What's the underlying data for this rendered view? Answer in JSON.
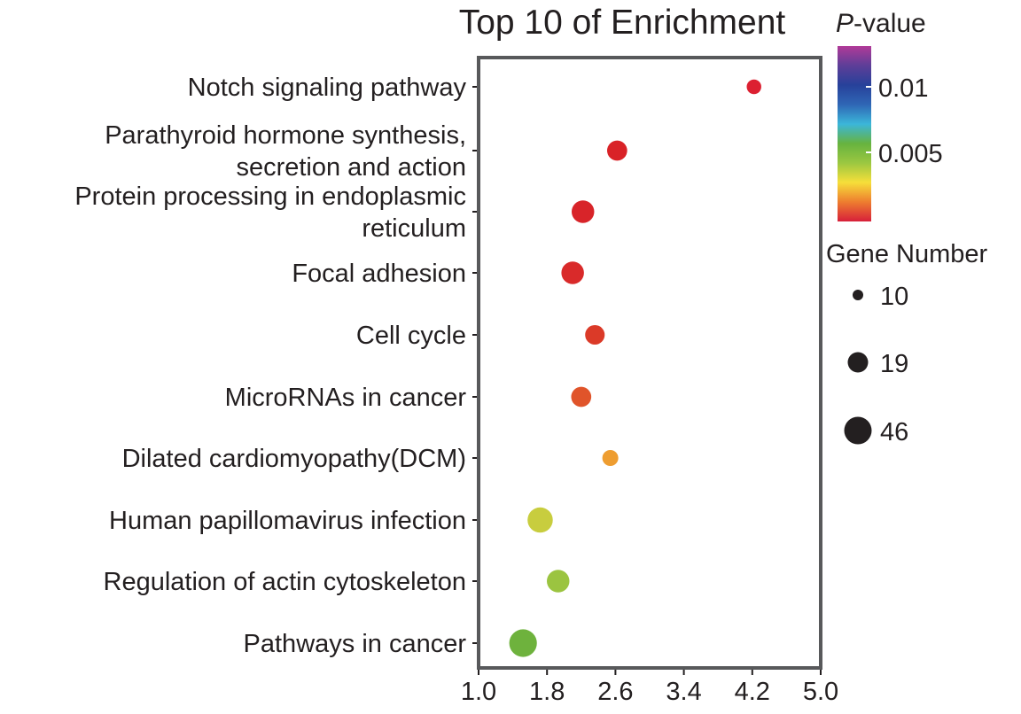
{
  "chart_data": {
    "type": "scatter",
    "title": "Top 10 of Enrichment",
    "xlabel": "",
    "ylabel": "",
    "xlim": [
      1.0,
      5.0
    ],
    "x_ticks": [
      "1.0",
      "1.8",
      "2.6",
      "3.4",
      "4.2",
      "5.0"
    ],
    "points": [
      {
        "label": "Notch signaling pathway",
        "x": 4.22,
        "p_value": 0.0002,
        "gene_number": 10,
        "color": "#dc2031"
      },
      {
        "label": "Parathyroid hormone synthesis,\nsecretion and action",
        "x": 2.62,
        "p_value": 0.0003,
        "gene_number": 19,
        "color": "#d92227"
      },
      {
        "label": "Protein processing in endoplasmic\nreticulum",
        "x": 2.22,
        "p_value": 0.0003,
        "gene_number": 24,
        "color": "#d82429"
      },
      {
        "label": "Focal adhesion",
        "x": 2.1,
        "p_value": 0.0003,
        "gene_number": 24,
        "color": "#d92a2a"
      },
      {
        "label": "Cell cycle",
        "x": 2.36,
        "p_value": 0.0005,
        "gene_number": 18,
        "color": "#db3a28"
      },
      {
        "label": "MicroRNAs in cancer",
        "x": 2.2,
        "p_value": 0.0007,
        "gene_number": 19,
        "color": "#e0542a"
      },
      {
        "label": "Dilated cardiomyopathy(DCM)",
        "x": 2.54,
        "p_value": 0.0015,
        "gene_number": 12,
        "color": "#ee9d30"
      },
      {
        "label": "Human papillomavirus infection",
        "x": 1.72,
        "p_value": 0.0035,
        "gene_number": 30,
        "color": "#c8cd3e"
      },
      {
        "label": "Regulation of actin cytoskeleton",
        "x": 1.93,
        "p_value": 0.0042,
        "gene_number": 24,
        "color": "#9bc440"
      },
      {
        "label": "Pathways in cancer",
        "x": 1.52,
        "p_value": 0.0046,
        "gene_number": 36,
        "color": "#6eb23d"
      }
    ],
    "color_legend": {
      "title_italic": "P",
      "title_rest": "-value",
      "ticks": [
        "0.01",
        "0.005"
      ],
      "colors": [
        "#d7203a",
        "#ee7d2f",
        "#f6df3a",
        "#9bc741",
        "#67b33f",
        "#3bb6d9",
        "#2f66b5",
        "#27419a",
        "#5d3e98",
        "#b13a98"
      ]
    },
    "size_legend": {
      "title": "Gene Number",
      "entries": [
        {
          "label": "10",
          "value": 10
        },
        {
          "label": "19",
          "value": 19
        },
        {
          "label": "46",
          "value": 46
        }
      ]
    }
  }
}
